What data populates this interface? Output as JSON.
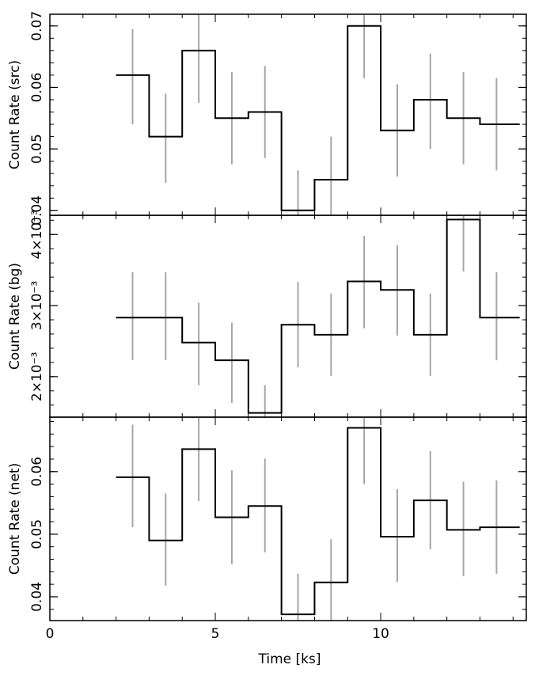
{
  "colors": {
    "step": "#000000",
    "errorbar": "#a6a6a6",
    "axis": "#000000",
    "background": "#ffffff"
  },
  "chart_data": {
    "type": "line",
    "style": "step-histogram-with-error-bars",
    "stacked_panels": 3,
    "shared_x": {
      "label": "Time [ks]",
      "range": [
        0,
        14.4
      ],
      "ticks": [
        0,
        5,
        10
      ],
      "tick_labels": [
        "0",
        "5",
        "10"
      ],
      "minor_step": 1,
      "bin_edges": [
        2,
        3,
        4,
        5,
        6,
        7,
        8,
        9,
        10,
        11,
        12,
        13,
        14.2
      ],
      "bin_centers": [
        2.5,
        3.5,
        4.5,
        5.5,
        6.5,
        7.5,
        8.5,
        9.5,
        10.5,
        11.5,
        12.5,
        13.5
      ]
    },
    "panels": [
      {
        "ylabel": "Count Rate (src)",
        "ylim": [
          0.0392,
          0.0719
        ],
        "ticks": [
          0.04,
          0.05,
          0.06,
          0.07
        ],
        "tick_labels": [
          "0.04",
          "0.05",
          "0.06",
          "0.07"
        ],
        "minor_step": 0.002,
        "values": [
          0.062,
          0.052,
          0.066,
          0.055,
          0.056,
          0.04,
          0.045,
          0.07,
          0.053,
          0.058,
          0.055,
          0.054
        ],
        "err_low": [
          0.054,
          0.0445,
          0.0575,
          0.0475,
          0.0485,
          0.0325,
          0.0375,
          0.0615,
          0.0455,
          0.05,
          0.0475,
          0.0465
        ],
        "err_high": [
          0.0695,
          0.059,
          0.0735,
          0.0625,
          0.0635,
          0.0465,
          0.052,
          0.0785,
          0.0605,
          0.0655,
          0.0625,
          0.0615
        ]
      },
      {
        "ylabel": "Count Rate (bg)",
        "ylim": [
          0.00143,
          0.00427
        ],
        "ticks": [
          0.002,
          0.003,
          0.004
        ],
        "tick_labels": [
          "2×10⁻³",
          "3×10⁻³",
          "4×10⁻³"
        ],
        "minor_step": 0.0002,
        "values": [
          0.00283,
          0.00283,
          0.00248,
          0.00223,
          0.00149,
          0.00273,
          0.00259,
          0.00334,
          0.00322,
          0.00259,
          0.00421,
          0.00283
        ],
        "err_low": [
          0.00223,
          0.00223,
          0.00188,
          0.00163,
          0.00114,
          0.00213,
          0.00201,
          0.00268,
          0.00258,
          0.00201,
          0.00348,
          0.00223
        ],
        "err_high": [
          0.00347,
          0.00347,
          0.00304,
          0.00276,
          0.00188,
          0.00333,
          0.00317,
          0.00398,
          0.00385,
          0.00317,
          0.00494,
          0.00347
        ]
      },
      {
        "ylabel": "Count Rate (net)",
        "ylim": [
          0.0362,
          0.0687
        ],
        "ticks": [
          0.04,
          0.05,
          0.06
        ],
        "tick_labels": [
          "0.04",
          "0.05",
          "0.06"
        ],
        "minor_step": 0.002,
        "values": [
          0.0591,
          0.049,
          0.0636,
          0.0527,
          0.0545,
          0.0372,
          0.0423,
          0.067,
          0.0496,
          0.0554,
          0.0507,
          0.0511
        ],
        "err_low": [
          0.0511,
          0.0418,
          0.0553,
          0.0452,
          0.0471,
          0.0301,
          0.0352,
          0.058,
          0.0424,
          0.0476,
          0.0433,
          0.0437
        ],
        "err_high": [
          0.0675,
          0.0565,
          0.072,
          0.0602,
          0.0621,
          0.0437,
          0.0492,
          0.0745,
          0.0572,
          0.0633,
          0.0584,
          0.0586
        ]
      }
    ]
  }
}
